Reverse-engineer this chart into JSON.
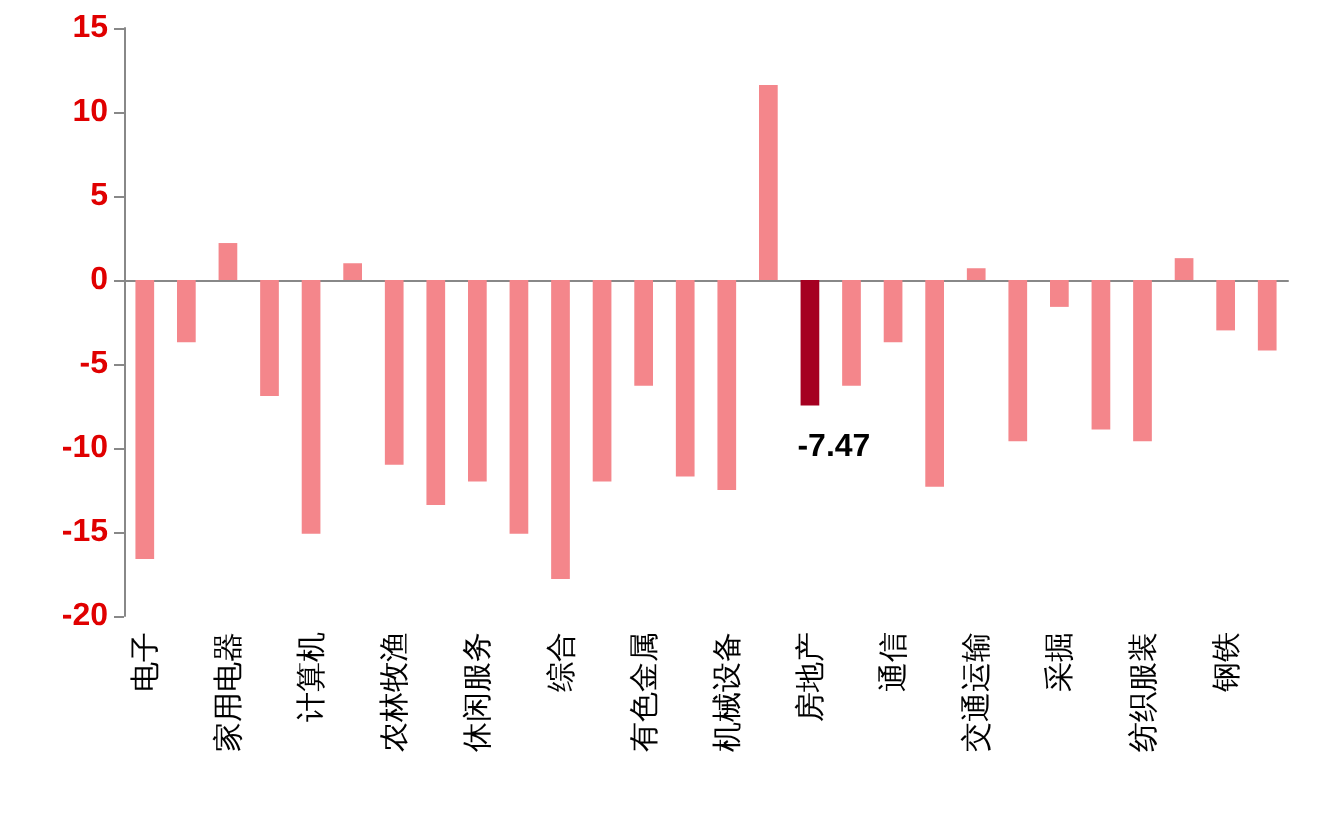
{
  "chart_data": {
    "type": "bar",
    "categories": [
      "电子",
      null,
      "家用电器",
      null,
      "计算机",
      null,
      "农林牧渔",
      null,
      "休闲服务",
      null,
      "综合",
      null,
      "有色金属",
      null,
      "机械设备",
      null,
      "房地产",
      null,
      "通信",
      null,
      "交通运输",
      null,
      "采掘",
      null,
      "纺织服装",
      null,
      "钢铁",
      null
    ],
    "values": [
      -16.6,
      -3.7,
      2.2,
      -6.9,
      -15.1,
      1.0,
      -11.0,
      -13.4,
      -12.0,
      -15.1,
      -17.8,
      -12.0,
      -6.3,
      -11.7,
      -12.5,
      11.6,
      -7.47,
      -6.3,
      -3.7,
      -12.3,
      0.7,
      -9.6,
      -1.6,
      -8.9,
      -9.6,
      1.3,
      -3.0,
      -4.2
    ],
    "colors": [
      "#f4868b",
      "#f4868b",
      "#f4868b",
      "#f4868b",
      "#f4868b",
      "#f4868b",
      "#f4868b",
      "#f4868b",
      "#f4868b",
      "#f4868b",
      "#f4868b",
      "#f4868b",
      "#f4868b",
      "#f4868b",
      "#f4868b",
      "#f4868b",
      "#a50021",
      "#f4868b",
      "#f4868b",
      "#f4868b",
      "#f4868b",
      "#f4868b",
      "#f4868b",
      "#f4868b",
      "#f4868b",
      "#f4868b",
      "#f4868b",
      "#f4868b"
    ],
    "value_labels": [
      null,
      null,
      null,
      null,
      null,
      null,
      null,
      null,
      null,
      null,
      null,
      null,
      null,
      null,
      null,
      null,
      "-7.47",
      null,
      null,
      null,
      null,
      null,
      null,
      null,
      null,
      null,
      null,
      null
    ],
    "ylim": [
      -20,
      15
    ],
    "yticks": [
      -20,
      -15,
      -10,
      -5,
      0,
      5,
      10,
      15
    ]
  }
}
